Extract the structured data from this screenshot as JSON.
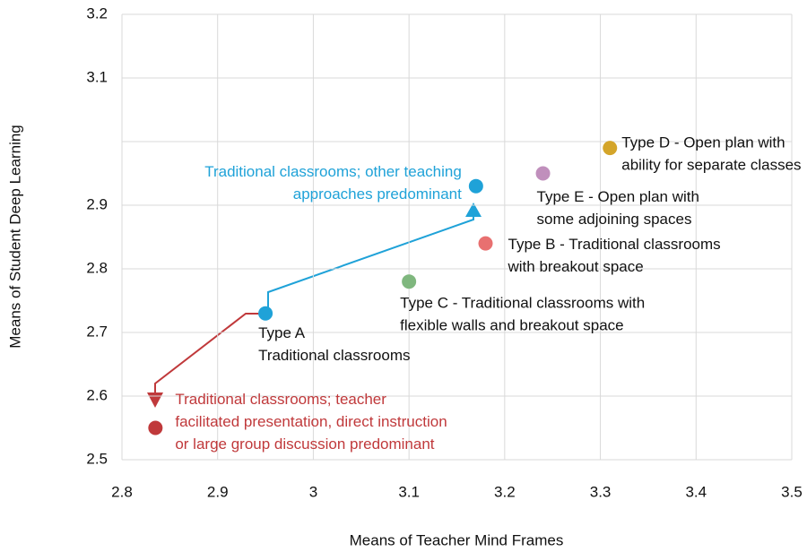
{
  "chart_data": {
    "type": "scatter",
    "x_label": "Means of Teacher Mind Frames",
    "y_label": "Means of Student Deep Learning",
    "xlim": [
      2.8,
      3.5
    ],
    "xticks": [
      2.8,
      2.9,
      3,
      3.1,
      3.2,
      3.3,
      3.4,
      3.5
    ],
    "ylim": [
      2.5,
      3.2
    ],
    "yticks": [
      2.5,
      2.6,
      2.7,
      2.8,
      2.9,
      3.1,
      3.2
    ],
    "ygrid": [
      2.5,
      2.6,
      2.7,
      2.8,
      2.9,
      3.0,
      3.1,
      3.2
    ],
    "grid": true,
    "points": [
      {
        "x": 2.95,
        "y": 2.73,
        "color": "#1fa2d8",
        "label": [
          "Type A",
          "Traditional classrooms"
        ],
        "label_color": "#111111"
      },
      {
        "x": 3.17,
        "y": 2.93,
        "color": "#1fa2d8",
        "label": [
          "Traditional classrooms; other teaching",
          "approaches predominant"
        ],
        "label_color": "#1fa2d8"
      },
      {
        "x": 3.1,
        "y": 2.78,
        "color": "#7fb77e",
        "label": [
          "Type C - Traditional classrooms with",
          "flexible walls and breakout space"
        ],
        "label_color": "#111111"
      },
      {
        "x": 3.18,
        "y": 2.84,
        "color": "#e87070",
        "label": [
          "Type B - Traditional classrooms",
          "with breakout space"
        ],
        "label_color": "#111111"
      },
      {
        "x": 3.24,
        "y": 2.95,
        "color": "#c08fbc",
        "label": [
          "Type E - Open plan with",
          "some adjoining spaces"
        ],
        "label_color": "#111111"
      },
      {
        "x": 3.31,
        "y": 2.99,
        "color": "#d4a52a",
        "label": [
          "Type D - Open plan with",
          "ability for separate classes"
        ],
        "label_color": "#111111"
      },
      {
        "x": 2.835,
        "y": 2.55,
        "color": "#c0393b",
        "label": [
          "Traditional classrooms; teacher",
          "facilitated presentation, direct instruction",
          "or large group discussion predominant"
        ],
        "label_color": "#c0393b"
      }
    ]
  }
}
